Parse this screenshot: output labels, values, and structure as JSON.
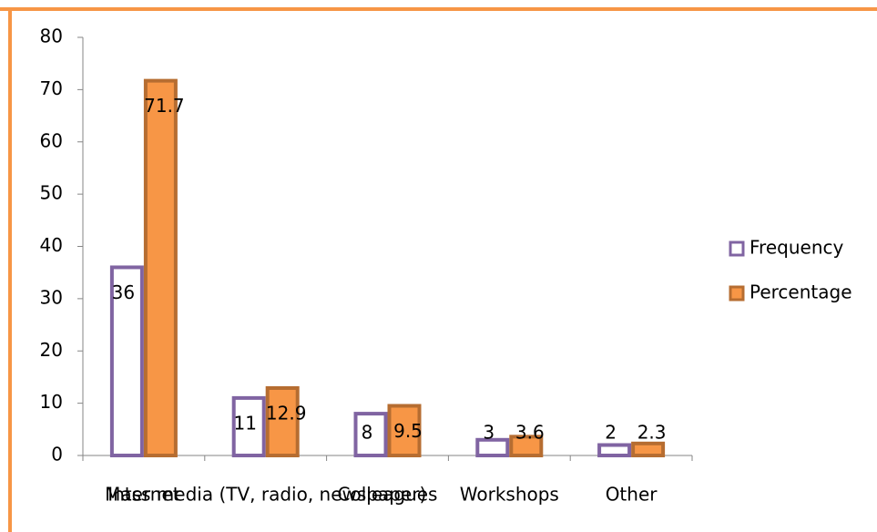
{
  "chart_data": {
    "type": "bar",
    "categories": [
      "Internet",
      "Mass media (TV, radio, newspaper)",
      "Colleagues",
      "Workshops",
      "Other"
    ],
    "series": [
      {
        "name": "Frequency",
        "color": "#ffffff",
        "stroke": "#8064a2",
        "values": [
          36,
          11,
          8,
          3,
          2
        ]
      },
      {
        "name": "Percentage",
        "color": "#f79646",
        "stroke": "#b66d31",
        "values": [
          71.7,
          12.9,
          9.5,
          3.6,
          2.3
        ]
      }
    ],
    "ylim": [
      0,
      80
    ],
    "yticks": [
      0,
      10,
      20,
      30,
      40,
      50,
      60,
      70,
      80
    ],
    "legend": "right"
  }
}
